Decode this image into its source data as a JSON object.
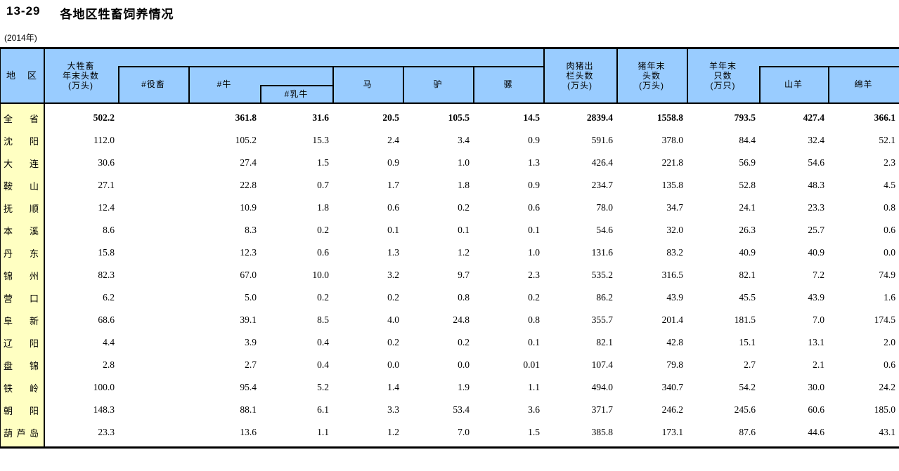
{
  "title": {
    "code": "13-29",
    "text": "各地区牲畜饲养情况"
  },
  "subtitle": "(2014年)",
  "header": {
    "region": "地区",
    "large_livestock": [
      "大牲畜",
      "年末头数",
      "(万头)"
    ],
    "draft": "#役畜",
    "cattle": "#牛",
    "dairy": "#乳牛",
    "horse": "马",
    "donkey": "驴",
    "mule": "骡",
    "pig_slaughter": [
      "肉猪出",
      "栏头数",
      "(万头)"
    ],
    "pig_yearend": [
      "猪年末",
      "头数",
      "(万头)"
    ],
    "sheep_yearend": [
      "羊年末",
      "只数",
      "(万只)"
    ],
    "goat": "山羊",
    "sheep": "绵羊"
  },
  "columns": [
    "大牲畜年末头数(万头)",
    "#役畜",
    "#牛",
    "#乳牛",
    "马",
    "驴",
    "骡",
    "肉猪出栏头数(万头)",
    "猪年末头数(万头)",
    "羊年末只数(万只)",
    "山羊",
    "绵羊"
  ],
  "colors": {
    "header_bg": "#99CCFF",
    "region_bg": "#FFFFC2",
    "border": "#000000"
  },
  "table": {
    "rows": [
      {
        "region": "全省",
        "bold": true,
        "values": [
          "502.2",
          "",
          "361.8",
          "31.6",
          "20.5",
          "105.5",
          "14.5",
          "2839.4",
          "1558.8",
          "793.5",
          "427.4",
          "366.1"
        ]
      },
      {
        "region": "沈阳",
        "bold": false,
        "values": [
          "112.0",
          "",
          "105.2",
          "15.3",
          "2.4",
          "3.4",
          "0.9",
          "591.6",
          "378.0",
          "84.4",
          "32.4",
          "52.1"
        ]
      },
      {
        "region": "大连",
        "bold": false,
        "values": [
          "30.6",
          "",
          "27.4",
          "1.5",
          "0.9",
          "1.0",
          "1.3",
          "426.4",
          "221.8",
          "56.9",
          "54.6",
          "2.3"
        ]
      },
      {
        "region": "鞍山",
        "bold": false,
        "values": [
          "27.1",
          "",
          "22.8",
          "0.7",
          "1.7",
          "1.8",
          "0.9",
          "234.7",
          "135.8",
          "52.8",
          "48.3",
          "4.5"
        ]
      },
      {
        "region": "抚顺",
        "bold": false,
        "values": [
          "12.4",
          "",
          "10.9",
          "1.8",
          "0.6",
          "0.2",
          "0.6",
          "78.0",
          "34.7",
          "24.1",
          "23.3",
          "0.8"
        ]
      },
      {
        "region": "本溪",
        "bold": false,
        "values": [
          "8.6",
          "",
          "8.3",
          "0.2",
          "0.1",
          "0.1",
          "0.1",
          "54.6",
          "32.0",
          "26.3",
          "25.7",
          "0.6"
        ]
      },
      {
        "region": "丹东",
        "bold": false,
        "values": [
          "15.8",
          "",
          "12.3",
          "0.6",
          "1.3",
          "1.2",
          "1.0",
          "131.6",
          "83.2",
          "40.9",
          "40.9",
          "0.0"
        ]
      },
      {
        "region": "锦州",
        "bold": false,
        "values": [
          "82.3",
          "",
          "67.0",
          "10.0",
          "3.2",
          "9.7",
          "2.3",
          "535.2",
          "316.5",
          "82.1",
          "7.2",
          "74.9"
        ]
      },
      {
        "region": "营口",
        "bold": false,
        "values": [
          "6.2",
          "",
          "5.0",
          "0.2",
          "0.2",
          "0.8",
          "0.2",
          "86.2",
          "43.9",
          "45.5",
          "43.9",
          "1.6"
        ]
      },
      {
        "region": "阜新",
        "bold": false,
        "values": [
          "68.6",
          "",
          "39.1",
          "8.5",
          "4.0",
          "24.8",
          "0.8",
          "355.7",
          "201.4",
          "181.5",
          "7.0",
          "174.5"
        ]
      },
      {
        "region": "辽阳",
        "bold": false,
        "values": [
          "4.4",
          "",
          "3.9",
          "0.4",
          "0.2",
          "0.2",
          "0.1",
          "82.1",
          "42.8",
          "15.1",
          "13.1",
          "2.0"
        ]
      },
      {
        "region": "盘锦",
        "bold": false,
        "values": [
          "2.8",
          "",
          "2.7",
          "0.4",
          "0.0",
          "0.0",
          "0.01",
          "107.4",
          "79.8",
          "2.7",
          "2.1",
          "0.6"
        ]
      },
      {
        "region": "铁岭",
        "bold": false,
        "values": [
          "100.0",
          "",
          "95.4",
          "5.2",
          "1.4",
          "1.9",
          "1.1",
          "494.0",
          "340.7",
          "54.2",
          "30.0",
          "24.2"
        ]
      },
      {
        "region": "朝阳",
        "bold": false,
        "values": [
          "148.3",
          "",
          "88.1",
          "6.1",
          "3.3",
          "53.4",
          "3.6",
          "371.7",
          "246.2",
          "245.6",
          "60.6",
          "185.0"
        ]
      },
      {
        "region": "葫芦岛",
        "bold": false,
        "values": [
          "23.3",
          "",
          "13.6",
          "1.1",
          "1.2",
          "7.0",
          "1.5",
          "385.8",
          "173.1",
          "87.6",
          "44.6",
          "43.1"
        ]
      }
    ]
  }
}
